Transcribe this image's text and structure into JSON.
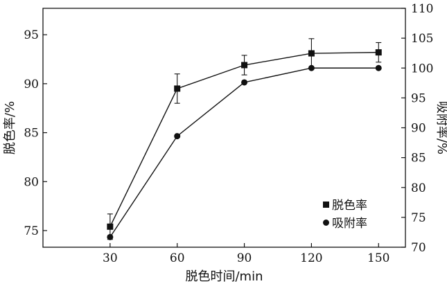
{
  "chart_data": {
    "type": "line",
    "x": [
      30,
      60,
      90,
      120,
      150
    ],
    "xlabel": "脱色时间/min",
    "ylabel_left": "脱色率/%",
    "ylabel_right": "吸附率/%",
    "xticks": [
      "30",
      "60",
      "90",
      "120",
      "150"
    ],
    "yticks_left": [
      "75",
      "80",
      "85",
      "90",
      "95"
    ],
    "yticks_right": [
      "70",
      "75",
      "80",
      "85",
      "90",
      "95",
      "100",
      "105",
      "110"
    ],
    "xlim": [
      0,
      162
    ],
    "ylim_left": [
      73.3,
      97.7
    ],
    "ylim_right": [
      70,
      110
    ],
    "grid": false,
    "legend_position": "lower-right",
    "series": [
      {
        "name": "脱色率",
        "axis": "left",
        "marker": "square",
        "values": [
          75.4,
          89.5,
          91.9,
          93.1,
          93.2
        ],
        "errors": [
          1.3,
          1.5,
          1.0,
          1.5,
          1.0
        ]
      },
      {
        "name": "吸附率",
        "axis": "right",
        "marker": "circle",
        "values": [
          71.7,
          88.6,
          97.6,
          100.0,
          100.0
        ]
      }
    ]
  }
}
